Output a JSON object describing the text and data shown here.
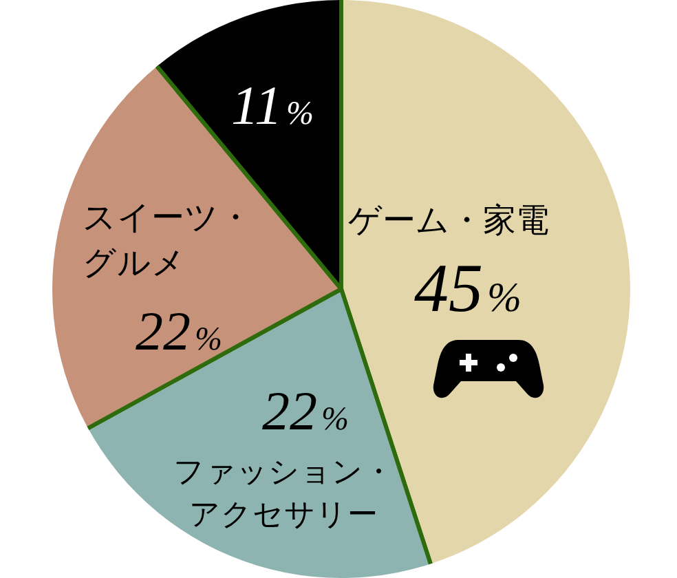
{
  "chart_data": {
    "type": "pie",
    "categories": [
      "ゲーム・家電",
      "ファッション・アクセサリー",
      "スイーツ・グルメ",
      null
    ],
    "values": [
      45,
      22,
      22,
      11
    ],
    "colors": [
      "#e2d6aa",
      "#8db4b0",
      "#c69279",
      "#000000"
    ],
    "value_labels": [
      "45%",
      "22%",
      "22%",
      "11%"
    ]
  }
}
